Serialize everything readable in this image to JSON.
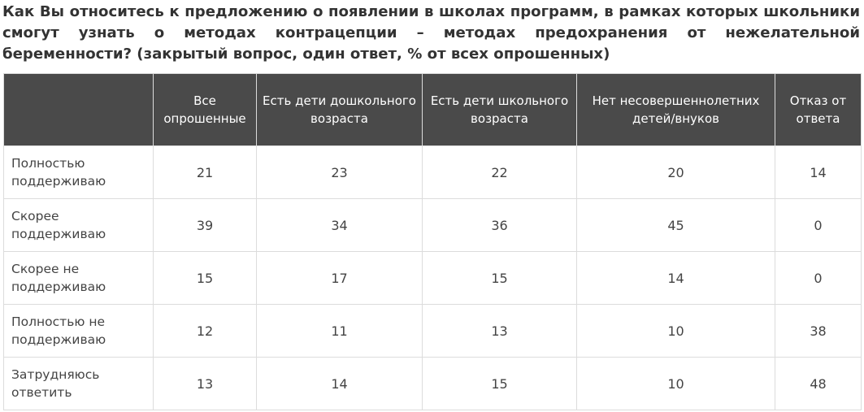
{
  "title": "Как Вы относитесь к предложению о появлении в школах программ, в рамках которых школьники смогут узнать о методах контрацепции – методах предохранения от нежелательной беременности? (закрытый вопрос, один ответ, % от всех опрошенных)",
  "chart_data": {
    "type": "table",
    "columns": [
      "",
      "Все опрошенные",
      "Есть дети дошкольного возраста",
      "Есть дети школьного возраста",
      "Нет несовершеннолетних детей/внуков",
      "Отказ от ответа"
    ],
    "rows": [
      {
        "label": "Полностью поддерживаю",
        "values": [
          "21",
          "23",
          "22",
          "20",
          "14"
        ]
      },
      {
        "label": "Скорее поддерживаю",
        "values": [
          "39",
          "34",
          "36",
          "45",
          "0"
        ]
      },
      {
        "label": "Скорее не поддерживаю",
        "values": [
          "15",
          "17",
          "15",
          "14",
          "0"
        ]
      },
      {
        "label": "Полностью не поддерживаю",
        "values": [
          "12",
          "11",
          "13",
          "10",
          "38"
        ]
      },
      {
        "label": "Затрудняюсь ответить",
        "values": [
          "13",
          "14",
          "15",
          "10",
          "48"
        ]
      }
    ]
  },
  "colors": {
    "header_bg": "#4a4a4a",
    "header_text": "#ffffff",
    "border": "#dcdcdc",
    "text": "#333333"
  }
}
